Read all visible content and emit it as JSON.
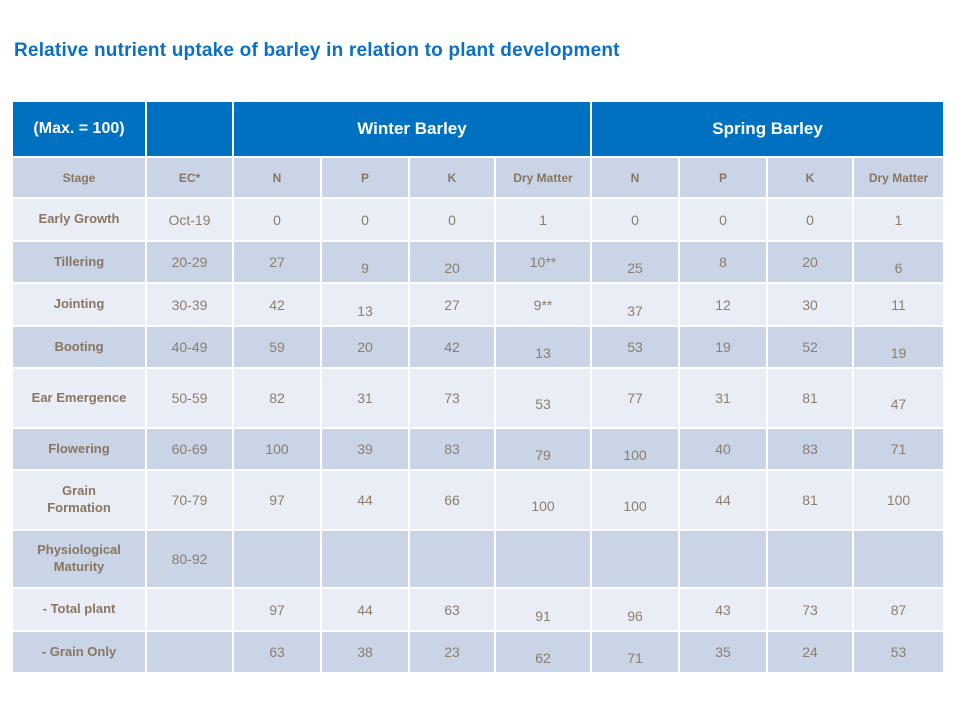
{
  "slide": {
    "title": "Relative nutrient uptake of barley in relation to plant development"
  },
  "colors": {
    "title_blue": "#0B6FC4",
    "header_blue": "#0070C0",
    "header_text": "#FFFFFF",
    "band_dark": "#C9D4E6",
    "band_light": "#E9EDF5",
    "label_text": "#8A7560",
    "value_text": "#8D7E6D"
  },
  "chart_data": {
    "type": "table",
    "title": "Relative nutrient uptake of barley in relation to plant development",
    "corner_label": "(Max. = 100)",
    "column_groups": [
      {
        "label": "Winter Barley",
        "span": 4
      },
      {
        "label": "Spring Barley",
        "span": 4
      }
    ],
    "columns": [
      "Stage",
      "EC*",
      "N",
      "P",
      "K",
      "Dry Matter",
      "N",
      "P",
      "K",
      "Dry Matter"
    ],
    "rows": [
      {
        "stage": "Early Growth",
        "ec": "Oct-19",
        "values": [
          "0",
          "0",
          "0",
          "1",
          "0",
          "0",
          "0",
          "1"
        ]
      },
      {
        "stage": "Tillering",
        "ec": "20-29",
        "values": [
          "27",
          "9",
          "20",
          "10**",
          "25",
          "8",
          "20",
          "6"
        ]
      },
      {
        "stage": "Jointing",
        "ec": "30-39",
        "values": [
          "42",
          "13",
          "27",
          "9**",
          "37",
          "12",
          "30",
          "11"
        ]
      },
      {
        "stage": "Booting",
        "ec": "40-49",
        "values": [
          "59",
          "20",
          "42",
          "13",
          "53",
          "19",
          "52",
          "19"
        ]
      },
      {
        "stage": "Ear Emergence",
        "ec": "50-59",
        "values": [
          "82",
          "31",
          "73",
          "53",
          "77",
          "31",
          "81",
          "47"
        ]
      },
      {
        "stage": "Flowering",
        "ec": "60-69",
        "values": [
          "100",
          "39",
          "83",
          "79",
          "100",
          "40",
          "83",
          "71"
        ]
      },
      {
        "stage": "Grain Formation",
        "ec": "70-79",
        "values": [
          "97",
          "44",
          "66",
          "100",
          "100",
          "44",
          "81",
          "100"
        ]
      },
      {
        "stage": "Physiological Maturity",
        "ec": "80-92",
        "values": [
          "",
          "",
          "",
          "",
          "",
          "",
          "",
          ""
        ]
      },
      {
        "stage": "- Total plant",
        "ec": "",
        "values": [
          "97",
          "44",
          "63",
          "91",
          "96",
          "43",
          "73",
          "87"
        ]
      },
      {
        "stage": "- Grain Only",
        "ec": "",
        "values": [
          "63",
          "38",
          "23",
          "62",
          "71",
          "35",
          "24",
          "53"
        ]
      }
    ]
  }
}
